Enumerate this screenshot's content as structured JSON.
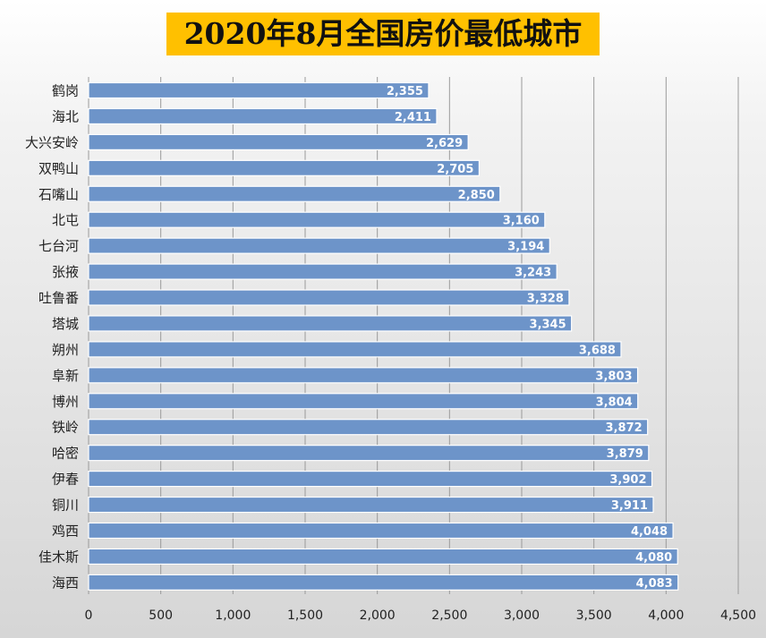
{
  "chart_data": {
    "type": "bar",
    "orientation": "horizontal",
    "title": "2020年8月全国房价最低城市",
    "categories": [
      "鹤岗",
      "海北",
      "大兴安岭",
      "双鸭山",
      "石嘴山",
      "北屯",
      "七台河",
      "张掖",
      "吐鲁番",
      "塔城",
      "朔州",
      "阜新",
      "博州",
      "铁岭",
      "哈密",
      "伊春",
      "铜川",
      "鸡西",
      "佳木斯",
      "海西"
    ],
    "values": [
      2355,
      2411,
      2629,
      2705,
      2850,
      3160,
      3194,
      3243,
      3328,
      3345,
      3688,
      3803,
      3804,
      3872,
      3879,
      3902,
      3911,
      4048,
      4080,
      4083
    ],
    "value_labels": [
      "2,355",
      "2,411",
      "2,629",
      "2,705",
      "2,850",
      "3,160",
      "3,194",
      "3,243",
      "3,328",
      "3,345",
      "3,688",
      "3,803",
      "3,804",
      "3,872",
      "3,879",
      "3,902",
      "3,911",
      "4,048",
      "4,080",
      "4,083"
    ],
    "x_ticks": [
      0,
      500,
      1000,
      1500,
      2000,
      2500,
      3000,
      3500,
      4000,
      4500
    ],
    "x_tick_labels": [
      "0",
      "500",
      "1,000",
      "1,500",
      "2,000",
      "2,500",
      "3,000",
      "3,500",
      "4,000",
      "4,500"
    ],
    "xlim": [
      0,
      4500
    ],
    "xlabel": "",
    "ylabel": "",
    "grid": "vertical",
    "legend": "none",
    "bar_color": "#6d94c9",
    "title_background": "#ffc000"
  }
}
